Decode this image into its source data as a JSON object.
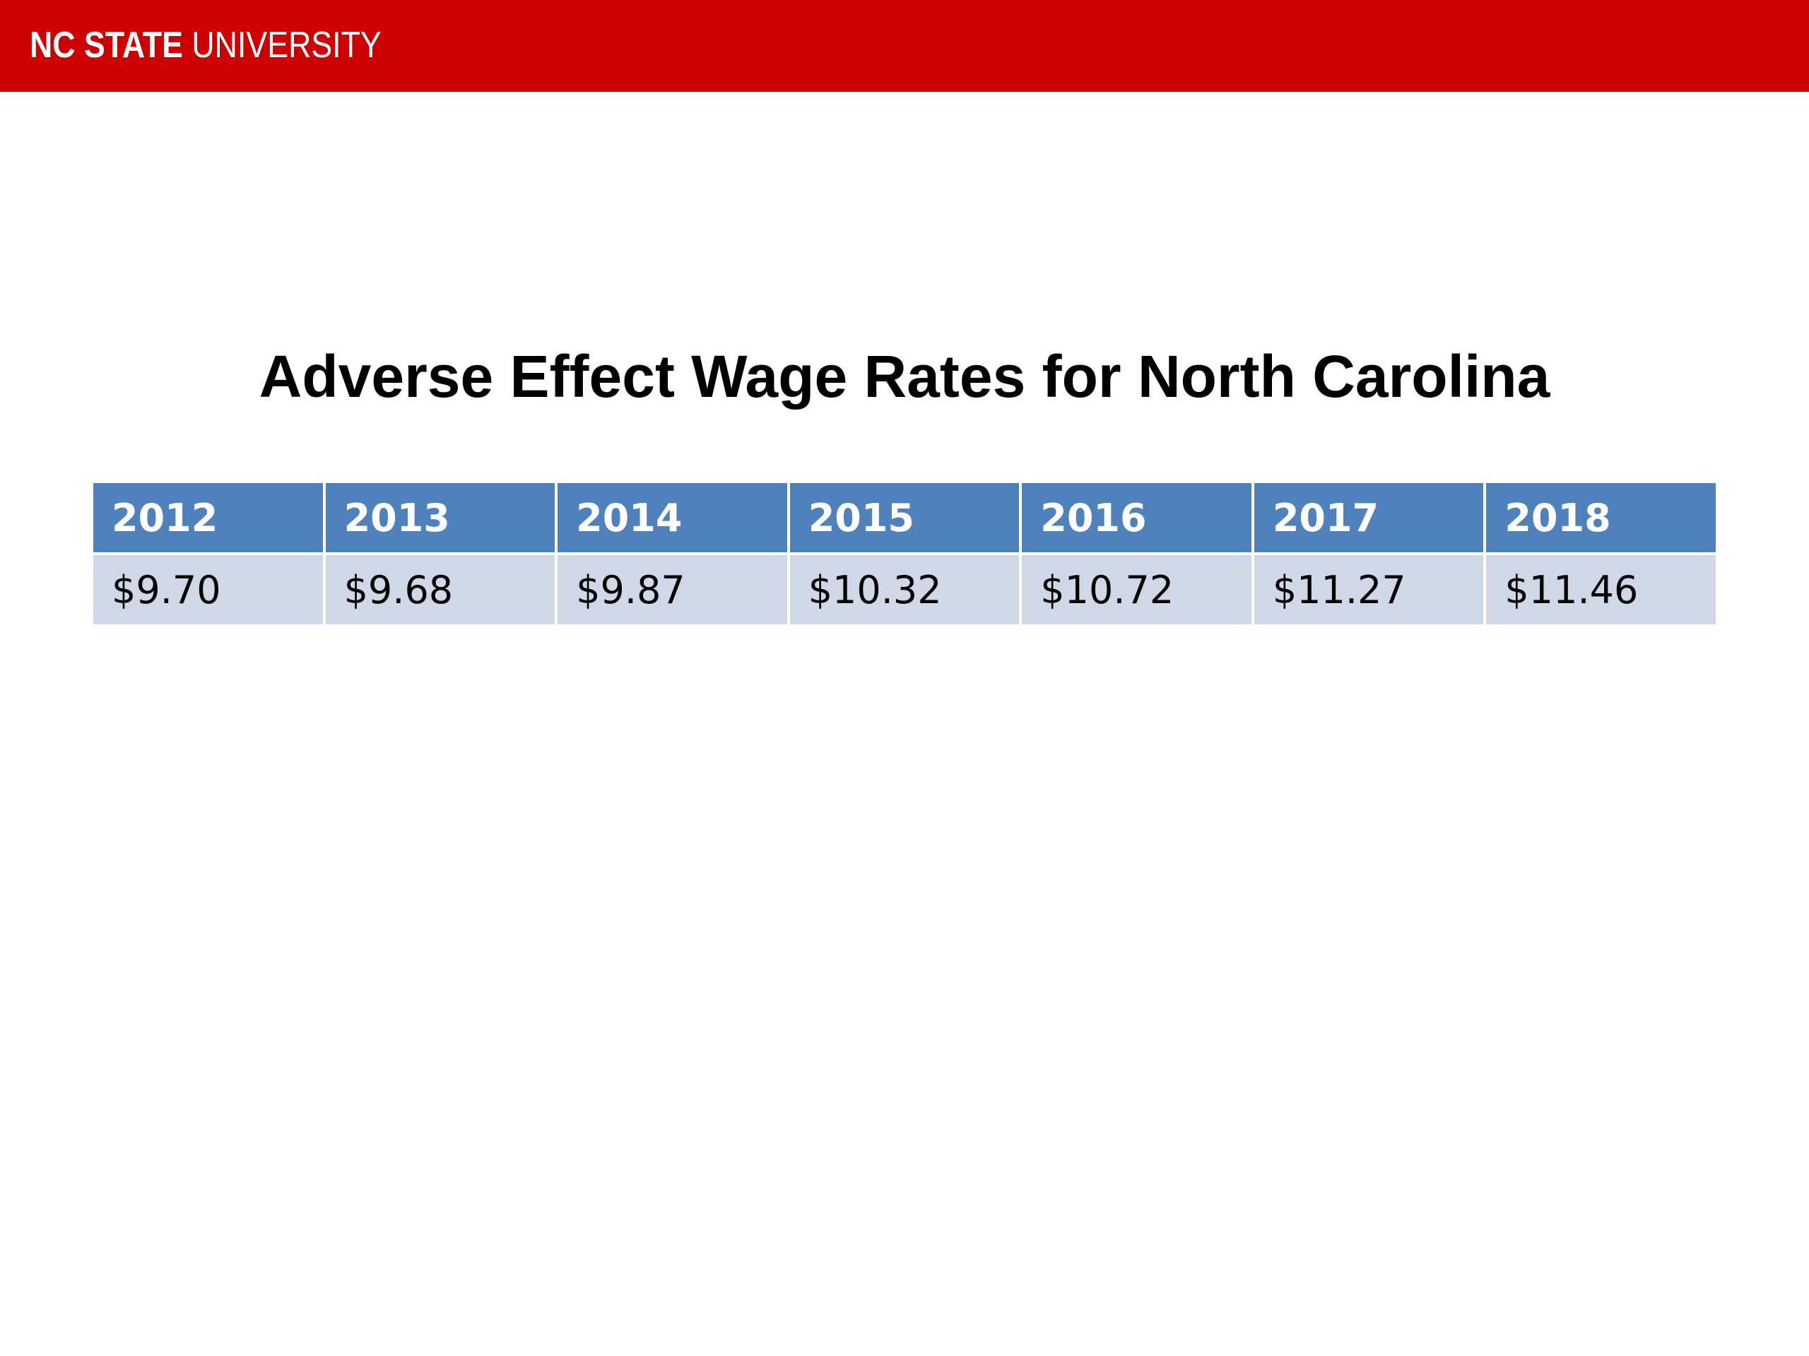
{
  "header": {
    "logo_bold": "NC STATE",
    "logo_light": "UNIVERSITY",
    "banner_color": "#cc0000"
  },
  "slide": {
    "title": "Adverse Effect Wage Rates for North Carolina"
  },
  "table": {
    "header_color": "#4f81bd",
    "row_color": "#d0d8e8",
    "columns": [
      "2012",
      "2013",
      "2014",
      "2015",
      "2016",
      "2017",
      "2018"
    ],
    "values": [
      "$9.70",
      "$9.68",
      "$9.87",
      "$10.32",
      "$10.72",
      "$11.27",
      "$11.46"
    ]
  }
}
